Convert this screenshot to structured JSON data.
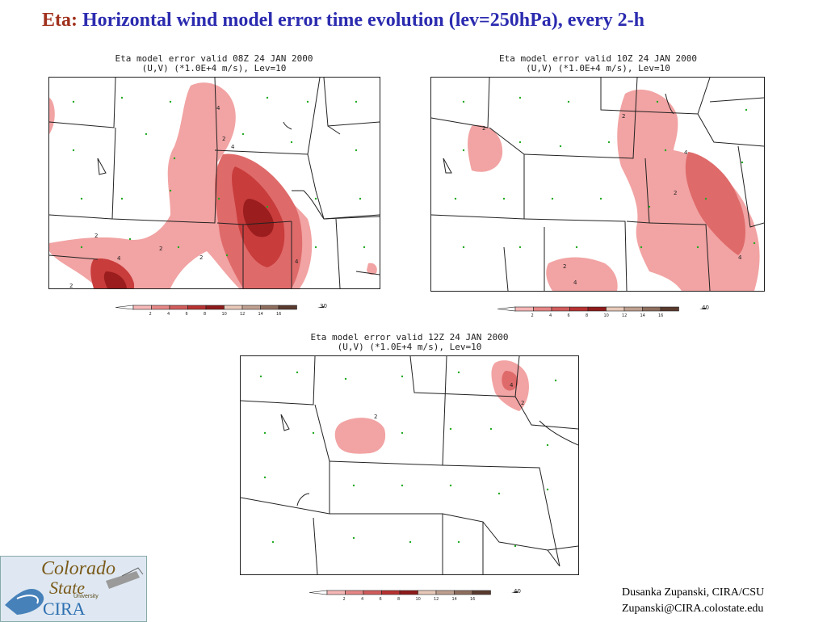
{
  "slide": {
    "title_lead": "Eta:",
    "title_rest": "Horizontal wind model error time evolution (lev=250hPa), every 2-h"
  },
  "panels": [
    {
      "id": "08Z",
      "caption_line1": "Eta model error valid 08Z 24 JAN 2000",
      "caption_line2": "(U,V) (*1.0E+4 m/s), Lev=10",
      "colorbar_ticks": [
        "2",
        "4",
        "6",
        "8",
        "10",
        "12",
        "14",
        "16"
      ],
      "colorbar_max": "30",
      "contour_labels": [
        "4",
        "2",
        "4",
        "2",
        "2",
        "4",
        "2",
        "4",
        "2"
      ]
    },
    {
      "id": "10Z",
      "caption_line1": "Eta model error valid 10Z 24 JAN 2000",
      "caption_line2": "(U,V) (*1.0E+4 m/s), Lev=10",
      "colorbar_ticks": [
        "2",
        "4",
        "6",
        "8",
        "10",
        "12",
        "14",
        "16"
      ],
      "colorbar_max": "40",
      "contour_labels": [
        "2",
        "2",
        "4",
        "2",
        "4",
        "2",
        "4"
      ]
    },
    {
      "id": "12Z",
      "caption_line1": "Eta model error valid 12Z 24 JAN 2000",
      "caption_line2": "(U,V) (*1.0E+4 m/s), Lev=10",
      "colorbar_ticks": [
        "2",
        "4",
        "6",
        "8",
        "10",
        "12",
        "14",
        "16"
      ],
      "colorbar_max": "40",
      "contour_labels": [
        "2",
        "4",
        "2"
      ]
    }
  ],
  "colors": {
    "title_lead": "#a0301c",
    "title_rest": "#2b2bb0",
    "fill_level_1": "#f2a3a3",
    "fill_level_2": "#df6a6a",
    "fill_level_3": "#c93c3c",
    "fill_level_4": "#9b1d1d",
    "wind_arrows": "#22aa22"
  },
  "colorbar_colors": [
    "#ffffff",
    "#f6b7b7",
    "#e68686",
    "#d25c5c",
    "#b83232",
    "#8f1a1a",
    "#e8c8b8",
    "#bfa090",
    "#8f6e5e",
    "#5a3a2e"
  ],
  "footer": {
    "line1": "Dusanka Zupanski,  CIRA/CSU",
    "line2": "Zupanski@CIRA.colostate.edu"
  },
  "logo": {
    "word1": "Colorado",
    "word2": "State",
    "word3": "University",
    "word4": "CIRA"
  }
}
